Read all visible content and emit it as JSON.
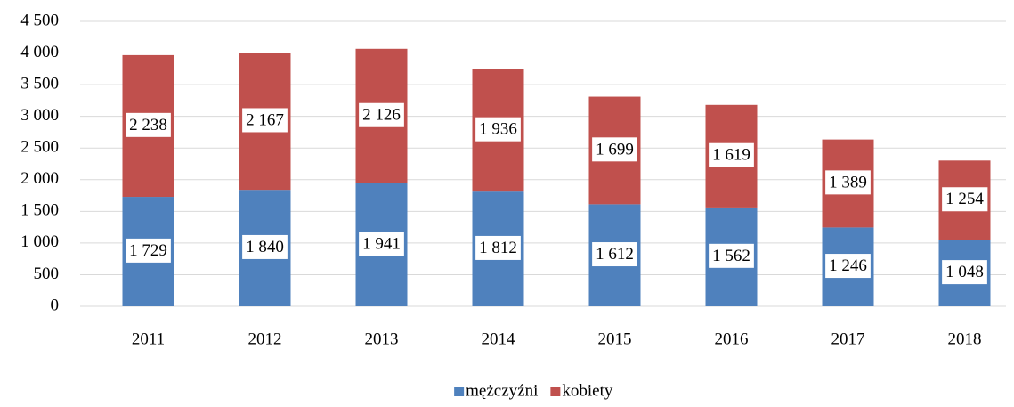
{
  "chart_data": {
    "type": "stacked-bar",
    "categories": [
      "2011",
      "2012",
      "2013",
      "2014",
      "2015",
      "2016",
      "2017",
      "2018"
    ],
    "series": [
      {
        "name": "mężczyźni",
        "color": "#4f81bd",
        "values": [
          1729,
          1840,
          1941,
          1812,
          1612,
          1562,
          1246,
          1048
        ],
        "value_labels": [
          "1 729",
          "1 840",
          "1 941",
          "1 812",
          "1 612",
          "1 562",
          "1 246",
          "1 048"
        ]
      },
      {
        "name": "kobiety",
        "color": "#c0504d",
        "values": [
          2238,
          2167,
          2126,
          1936,
          1699,
          1619,
          1389,
          1254
        ],
        "value_labels": [
          "2 238",
          "2 167",
          "2 126",
          "1 936",
          "1 699",
          "1 619",
          "1 389",
          "1 254"
        ]
      }
    ],
    "ylim": [
      0,
      4500
    ],
    "yticks": [
      0,
      500,
      {
        "value": 1000,
        "label": "1 000"
      },
      {
        "value": 1500,
        "label": "1 500"
      },
      {
        "value": 2000,
        "label": "2 000"
      },
      {
        "value": 2500,
        "label": "2 500"
      },
      {
        "value": 3000,
        "label": "3 000"
      },
      {
        "value": 3500,
        "label": "3 500"
      },
      {
        "value": 4000,
        "label": "4 000"
      },
      {
        "value": 4500,
        "label": "4 500"
      }
    ],
    "grid": true,
    "legend": "bottom"
  }
}
